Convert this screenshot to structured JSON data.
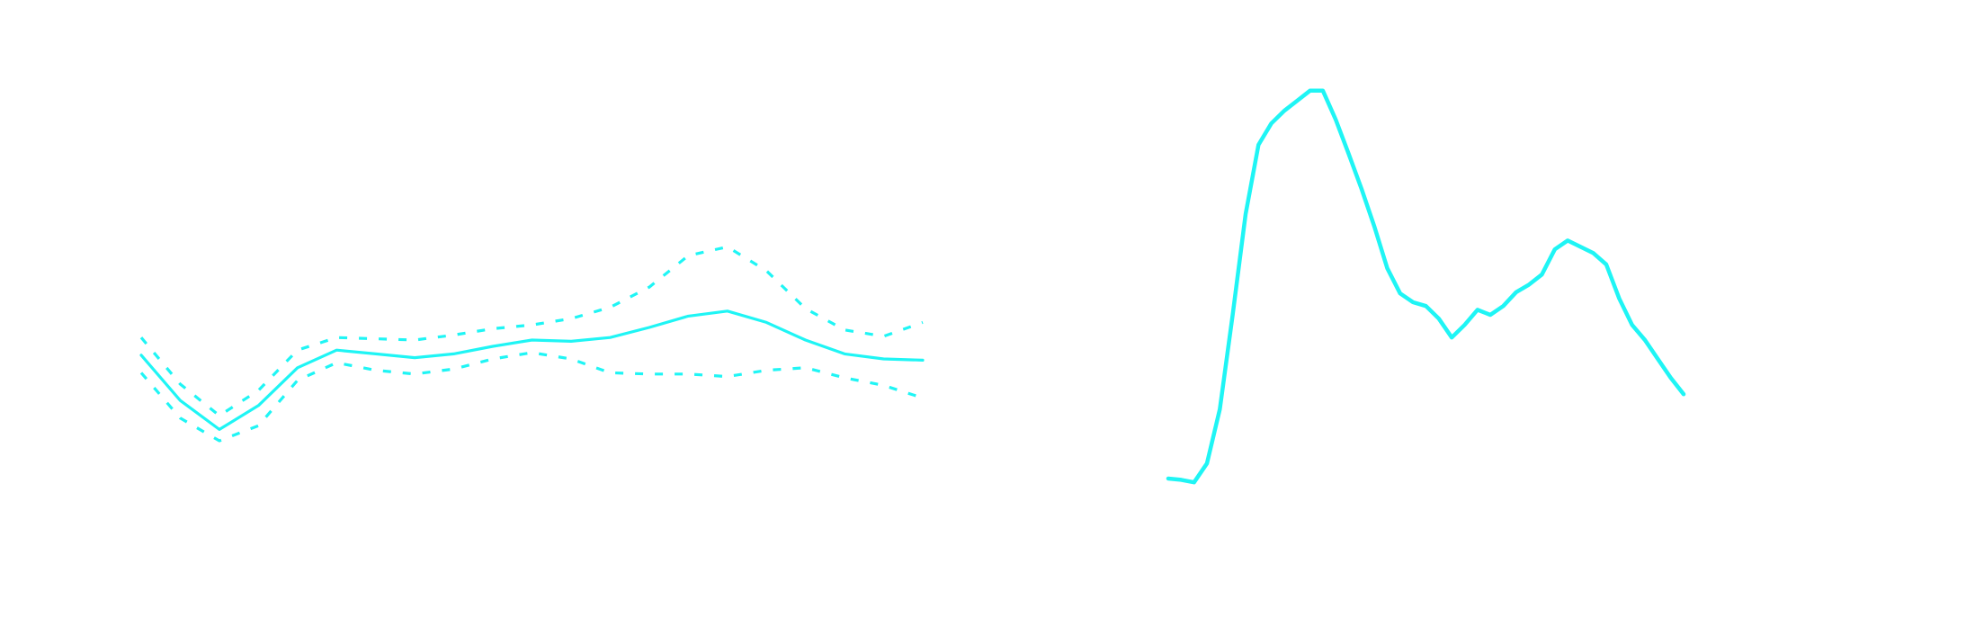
{
  "chart_data": [
    {
      "type": "line",
      "x": [
        0,
        1,
        2,
        3,
        4,
        5,
        6,
        7,
        8,
        9,
        10,
        11,
        12,
        13,
        14,
        15,
        16,
        17,
        18,
        19,
        20
      ],
      "xlim": [
        0,
        20
      ],
      "ylim": [
        0,
        490
      ],
      "series": [
        {
          "color": "#1ff5f5",
          "dash": false,
          "values": [
            208,
            172,
            149,
            168,
            198,
            212,
            209,
            206,
            209,
            215,
            220,
            219,
            222,
            230,
            239,
            243,
            234,
            220,
            209,
            205,
            204
          ]
        },
        {
          "color": "#1ff5f5",
          "dash": true,
          "values": [
            222,
            185,
            160,
            180,
            212,
            222,
            221,
            220,
            224,
            229,
            232,
            237,
            246,
            262,
            287,
            294,
            275,
            245,
            228,
            223,
            234
          ]
        },
        {
          "color": "#1ff5f5",
          "dash": true,
          "values": [
            194,
            158,
            140,
            152,
            188,
            202,
            196,
            193,
            197,
            205,
            210,
            205,
            194,
            193,
            193,
            191,
            196,
            198,
            190,
            184,
            174
          ]
        }
      ]
    },
    {
      "type": "line",
      "x": [
        0,
        1,
        2,
        3,
        4,
        5,
        6,
        7,
        8,
        9,
        10,
        11,
        12,
        13,
        14,
        15,
        16,
        17,
        18,
        19,
        20,
        21,
        22,
        23,
        24,
        25,
        26,
        27,
        28,
        29,
        30,
        31,
        32,
        33,
        34,
        35,
        36,
        37,
        38,
        39,
        40
      ],
      "xlim": [
        0,
        40
      ],
      "ylim": [
        0,
        490
      ],
      "series": [
        {
          "color": "#1ff5f5",
          "dash": false,
          "values": [
            110,
            109,
            107,
            122,
            165,
            240,
            320,
            375,
            392,
            402,
            410,
            418,
            418,
            395,
            368,
            340,
            310,
            277,
            257,
            250,
            247,
            237,
            222,
            232,
            244,
            240,
            247,
            258,
            264,
            272,
            292,
            299,
            294,
            289,
            280,
            253,
            232,
            220,
            205,
            190,
            177
          ]
        }
      ]
    }
  ]
}
